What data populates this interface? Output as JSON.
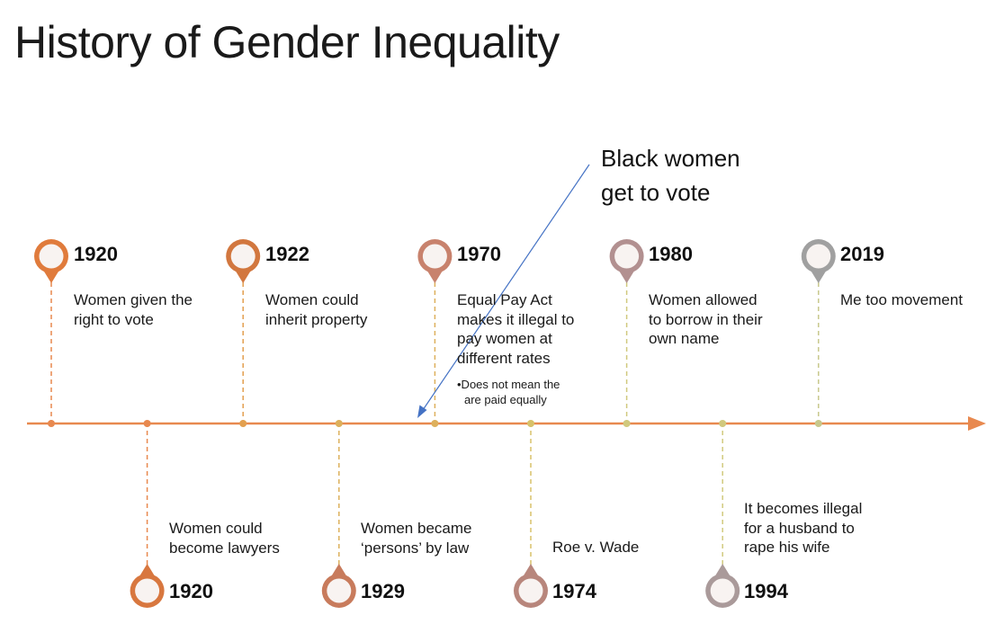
{
  "title": "History of Gender Inequality",
  "callout": {
    "lines": [
      "Black women",
      "get to vote"
    ]
  },
  "events": [
    {
      "id": "above-1920",
      "year": "1920",
      "lines": [
        "Women given the",
        "right to vote"
      ],
      "color": "#E07B3C"
    },
    {
      "id": "below-1920",
      "year": "1920",
      "lines": [
        "Women could",
        "become lawyers"
      ],
      "color": "#D8773F"
    },
    {
      "id": "above-1922",
      "year": "1922",
      "lines": [
        "Women could",
        "inherit property"
      ],
      "color": "#D2773F"
    },
    {
      "id": "below-1929",
      "year": "1929",
      "lines": [
        "Women became",
        "‘persons’ by law"
      ],
      "color": "#C87B5C"
    },
    {
      "id": "above-1970",
      "year": "1970",
      "lines": [
        "Equal Pay Act",
        "makes it illegal to",
        "pay women at",
        "different rates"
      ],
      "note": [
        "•Does not mean the",
        "are paid equally"
      ],
      "color": "#C8826D"
    },
    {
      "id": "below-1974",
      "year": "1974",
      "lines": [
        "Roe v. Wade"
      ],
      "color": "#B8867C"
    },
    {
      "id": "above-1980",
      "year": "1980",
      "lines": [
        "Women allowed",
        "to borrow in their",
        "own name"
      ],
      "color": "#B29090"
    },
    {
      "id": "below-1994",
      "year": "1994",
      "lines": [
        "It becomes illegal",
        "for a husband to",
        "rape his wife"
      ],
      "color": "#AA9A9A"
    },
    {
      "id": "above-2019",
      "year": "2019",
      "lines": [
        "Me too movement"
      ],
      "color": "#A0A0A0"
    }
  ],
  "colors": {
    "axis": "#E8894F",
    "arrow_line": "#4472C4",
    "stem_colors": [
      "#E8894F",
      "#E3A04F",
      "#DDB05C",
      "#D8C26A",
      "#D1C97E",
      "#C8C88C"
    ]
  },
  "icons": {
    "marker": "map-pin-icon"
  }
}
